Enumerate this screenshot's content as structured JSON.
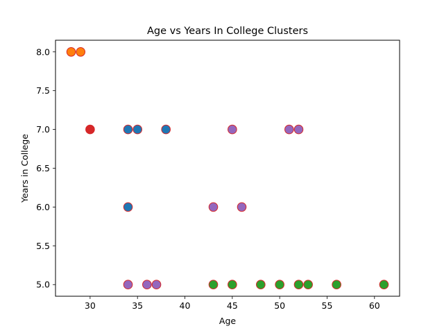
{
  "chart_data": {
    "type": "scatter",
    "title": "Age vs Years In College Clusters",
    "xlabel": "Age",
    "ylabel": "Years in College",
    "xlim": [
      26.35,
      62.65
    ],
    "ylim": [
      4.85,
      8.15
    ],
    "xticks": [
      30,
      35,
      40,
      45,
      50,
      55,
      60
    ],
    "yticks": [
      5.0,
      5.5,
      6.0,
      6.5,
      7.0,
      7.5,
      8.0
    ],
    "xtick_labels": [
      "30",
      "35",
      "40",
      "45",
      "50",
      "55",
      "60"
    ],
    "ytick_labels": [
      "5.0",
      "5.5",
      "6.0",
      "6.5",
      "7.0",
      "7.5",
      "8.0"
    ],
    "grid": false,
    "marker_edge_color": "#d62728",
    "series": [
      {
        "color": "#1f77b4",
        "points": [
          [
            34,
            7
          ],
          [
            35,
            7
          ],
          [
            38,
            7
          ],
          [
            34,
            6
          ]
        ]
      },
      {
        "color": "#ff7f0e",
        "points": [
          [
            28,
            8
          ],
          [
            29,
            8
          ]
        ]
      },
      {
        "color": "#2ca02c",
        "points": [
          [
            43,
            5
          ],
          [
            45,
            5
          ],
          [
            48,
            5
          ],
          [
            50,
            5
          ],
          [
            52,
            5
          ],
          [
            53,
            5
          ],
          [
            56,
            5
          ],
          [
            61,
            5
          ]
        ]
      },
      {
        "color": "#d62728",
        "points": [
          [
            30,
            7
          ]
        ]
      },
      {
        "color": "#9467bd",
        "points": [
          [
            45,
            7
          ],
          [
            51,
            7
          ],
          [
            52,
            7
          ],
          [
            43,
            6
          ],
          [
            46,
            6
          ],
          [
            34,
            5
          ],
          [
            36,
            5
          ],
          [
            37,
            5
          ]
        ]
      }
    ]
  }
}
